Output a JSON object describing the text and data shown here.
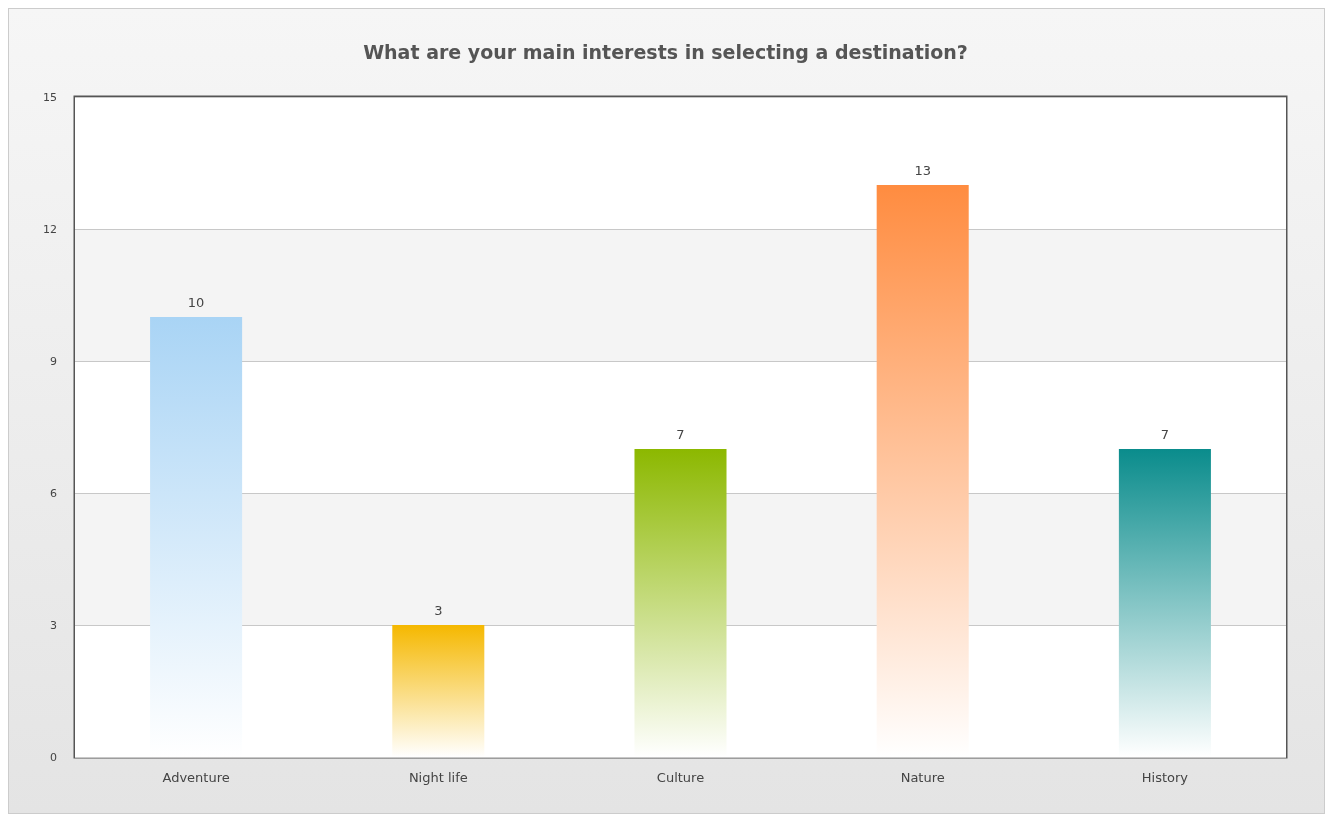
{
  "chart_data": {
    "type": "bar",
    "title": "What are your main interests in selecting a destination?",
    "categories": [
      "Adventure",
      "Night life",
      "Culture",
      "Nature",
      "History"
    ],
    "values": [
      10,
      3,
      7,
      13,
      7
    ],
    "colors": [
      "#a9d4f5",
      "#f5b800",
      "#8cb800",
      "#ff8c40",
      "#0a8c8c"
    ],
    "ylim": [
      0,
      15
    ],
    "yticks": [
      0,
      3,
      6,
      9,
      12,
      15
    ],
    "grid": "y",
    "data_labels": true
  }
}
